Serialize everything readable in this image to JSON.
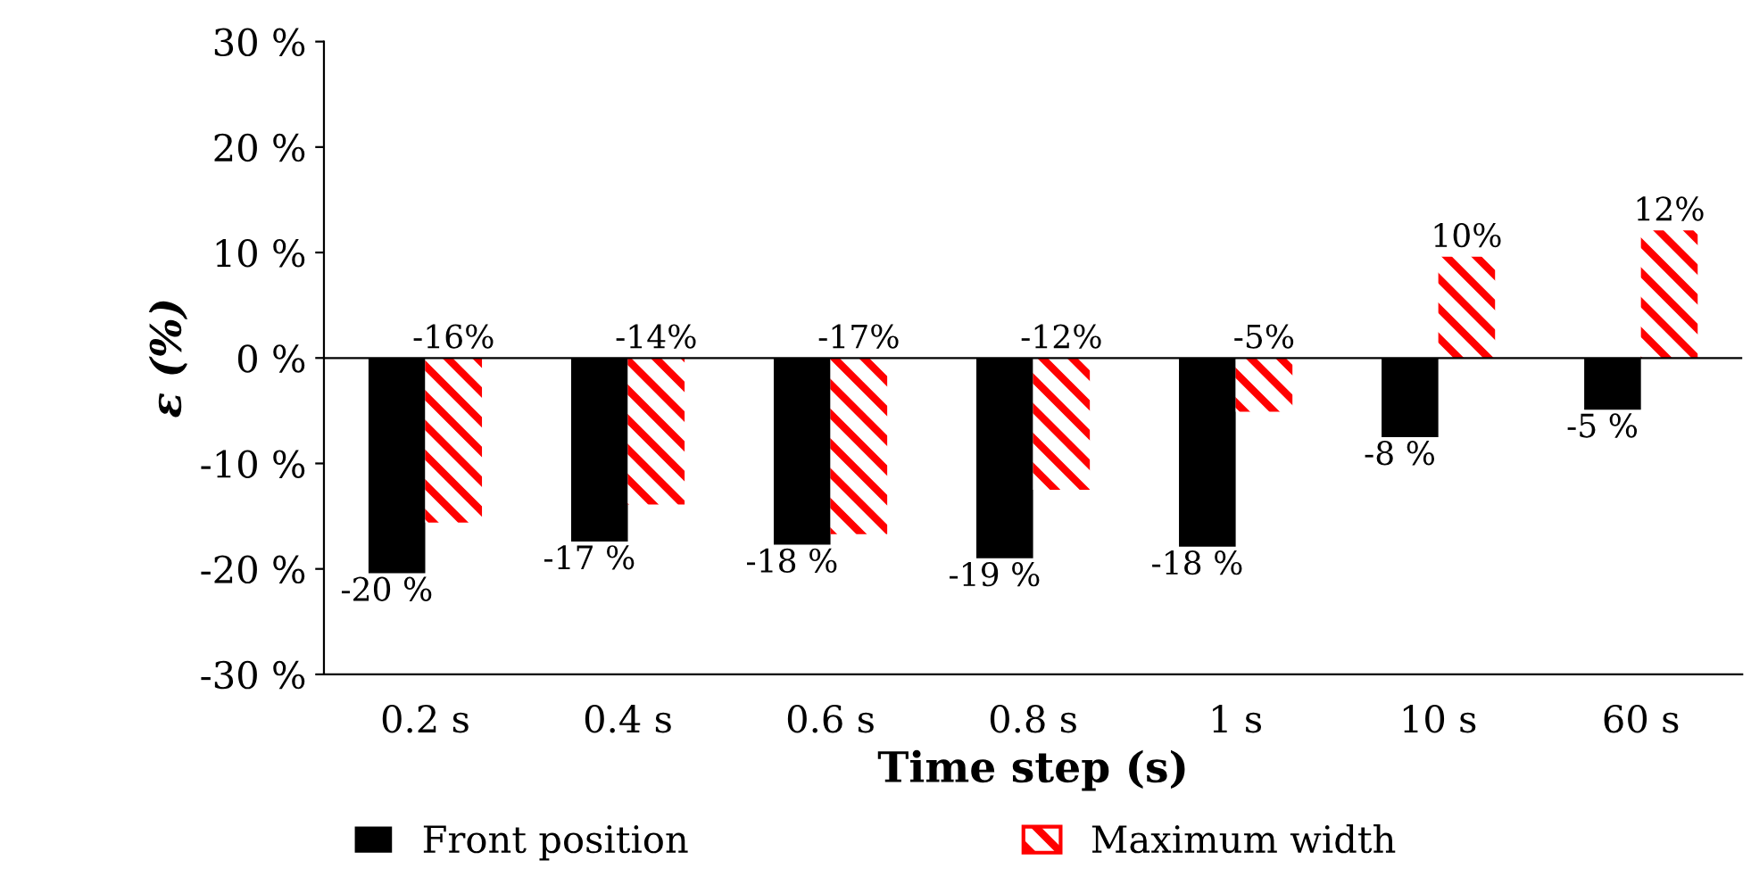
{
  "chart_data": {
    "type": "bar",
    "xlabel": "Time step (s)",
    "ylabel": "ε (%)",
    "categories": [
      "0.2 s",
      "0.4 s",
      "0.6 s",
      "0.8 s",
      "1 s",
      "10 s",
      "60 s"
    ],
    "series": [
      {
        "name": "Front position",
        "color": "#000000",
        "values": [
          -20.4,
          -17.4,
          -17.7,
          -19.0,
          -17.9,
          -7.5,
          -4.9
        ],
        "value_labels": [
          "-20 %",
          "-17 %",
          "-18 %",
          "-19 %",
          "-18 %",
          "-8 %",
          "-5 %"
        ]
      },
      {
        "name": "Maximum width",
        "color": "#ff0000",
        "values": [
          -15.6,
          -13.9,
          -16.7,
          -12.5,
          -5.1,
          9.6,
          12.1
        ],
        "value_labels": [
          "-16%",
          "-14%",
          "-17%",
          "-12%",
          "-5%",
          "10%",
          "12%"
        ]
      }
    ],
    "ylim": [
      -30,
      30
    ],
    "yticks": [
      {
        "value": -30,
        "label": "-30 %"
      },
      {
        "value": -20,
        "label": "-20 %"
      },
      {
        "value": -10,
        "label": "-10 %"
      },
      {
        "value": 0,
        "label": "0 %"
      },
      {
        "value": 10,
        "label": "10 %"
      },
      {
        "value": 20,
        "label": "20 %"
      },
      {
        "value": 30,
        "label": "30 %"
      }
    ],
    "ref_lines": [
      {
        "axis": "y",
        "value": 0,
        "color": "#000000"
      }
    ],
    "legend": "bottom"
  }
}
